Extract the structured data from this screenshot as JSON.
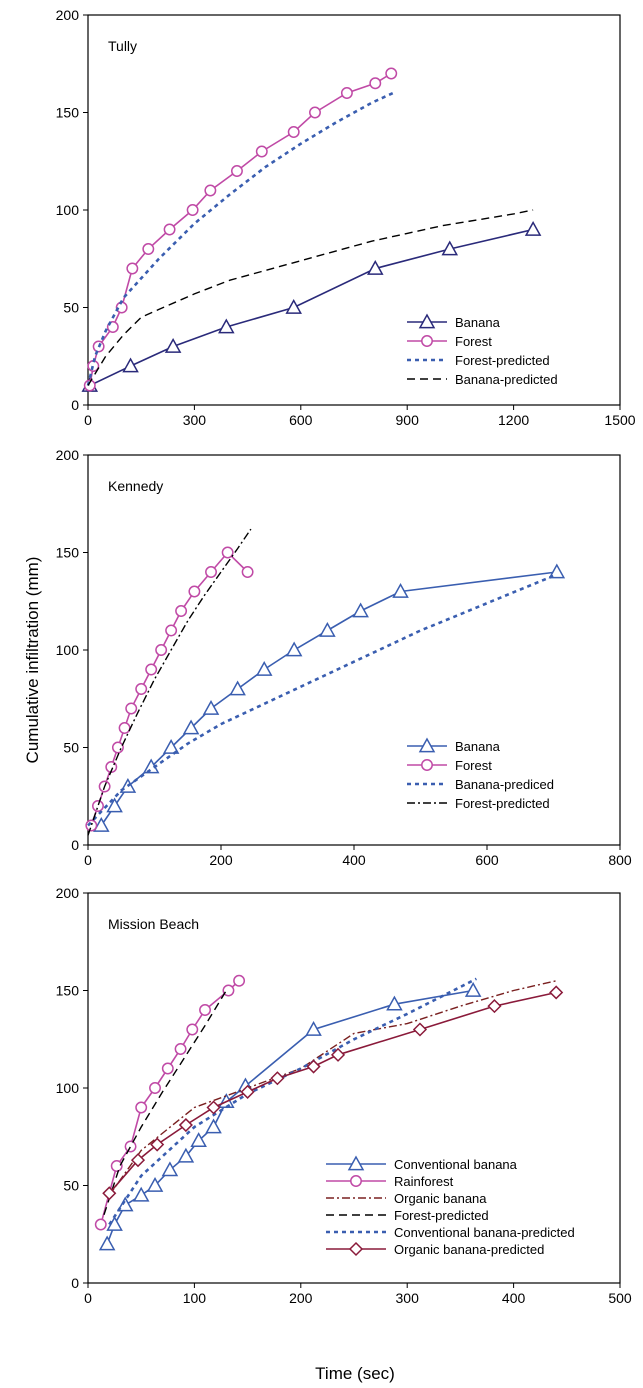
{
  "figure": {
    "ylabel": "Cumulative infiltration (mm)",
    "xlabel": "Time (sec)"
  },
  "chart_data": [
    {
      "type": "line",
      "panel_label": "Tully",
      "xlim": [
        0,
        1500
      ],
      "ylim": [
        0,
        200
      ],
      "xticks": [
        0,
        300,
        600,
        900,
        1200,
        1500
      ],
      "yticks": [
        0,
        50,
        100,
        150,
        200
      ],
      "legend_position": "bottom-right",
      "series": [
        {
          "name": "Banana",
          "color": "#2a2a7a",
          "line": "solid",
          "marker": "triangle",
          "x": [
            5,
            120,
            240,
            390,
            580,
            810,
            1020,
            1255
          ],
          "y": [
            10,
            20,
            30,
            40,
            50,
            70,
            80,
            90
          ]
        },
        {
          "name": "Forest",
          "color": "#c04aa6",
          "line": "solid",
          "marker": "circle",
          "x": [
            5,
            15,
            30,
            70,
            95,
            125,
            170,
            230,
            295,
            345,
            420,
            490,
            580,
            640,
            730,
            810,
            855
          ],
          "y": [
            10,
            20,
            30,
            40,
            50,
            70,
            80,
            90,
            100,
            110,
            120,
            130,
            140,
            150,
            160,
            165,
            170
          ]
        },
        {
          "name": "Forest-predicted",
          "color": "#3a5eb0",
          "line": "dotted",
          "marker": "none",
          "x": [
            0,
            20,
            50,
            100,
            150,
            200,
            300,
            400,
            500,
            600,
            700,
            800,
            860
          ],
          "y": [
            10,
            25,
            38,
            55,
            65,
            75,
            93,
            108,
            122,
            134,
            145,
            155,
            160
          ]
        },
        {
          "name": "Banana-predicted",
          "color": "#000000",
          "line": "dashed",
          "marker": "none",
          "x": [
            0,
            50,
            100,
            150,
            200,
            300,
            400,
            500,
            600,
            700,
            800,
            900,
            1000,
            1100,
            1200,
            1255
          ],
          "y": [
            10,
            25,
            36,
            45,
            49,
            57,
            64,
            69,
            74,
            79,
            84,
            88,
            92,
            95,
            98,
            100
          ]
        }
      ]
    },
    {
      "type": "line",
      "panel_label": "Kennedy",
      "xlim": [
        0,
        800
      ],
      "ylim": [
        0,
        200
      ],
      "xticks": [
        0,
        200,
        400,
        600,
        800
      ],
      "yticks": [
        0,
        50,
        100,
        150,
        200
      ],
      "legend_position": "bottom-right",
      "series": [
        {
          "name": "Banana",
          "color": "#3a5eb0",
          "line": "solid",
          "marker": "triangle",
          "x": [
            20,
            40,
            60,
            95,
            125,
            155,
            185,
            225,
            265,
            310,
            360,
            410,
            470,
            705
          ],
          "y": [
            10,
            20,
            30,
            40,
            50,
            60,
            70,
            80,
            90,
            100,
            110,
            120,
            130,
            140
          ]
        },
        {
          "name": "Forest",
          "color": "#c04aa6",
          "line": "solid",
          "marker": "circle",
          "x": [
            5,
            15,
            25,
            35,
            45,
            55,
            65,
            80,
            95,
            110,
            125,
            140,
            160,
            185,
            210,
            240
          ],
          "y": [
            10,
            20,
            30,
            40,
            50,
            60,
            70,
            80,
            90,
            100,
            110,
            120,
            130,
            140,
            150,
            140
          ]
        },
        {
          "name": "Banana-prediced",
          "color": "#3a5eb0",
          "line": "dotted",
          "marker": "none",
          "x": [
            0,
            50,
            100,
            150,
            200,
            250,
            300,
            350,
            400,
            450,
            500,
            550,
            600,
            650,
            700
          ],
          "y": [
            10,
            28,
            40,
            52,
            62,
            70,
            78,
            86,
            94,
            102,
            110,
            117,
            124,
            131,
            138
          ]
        },
        {
          "name": "Forest-predicted",
          "color": "#000000",
          "line": "dashdot",
          "marker": "none",
          "x": [
            0,
            25,
            50,
            75,
            100,
            125,
            150,
            175,
            200,
            225,
            245
          ],
          "y": [
            5,
            30,
            50,
            68,
            85,
            100,
            115,
            128,
            140,
            152,
            162
          ]
        }
      ]
    },
    {
      "type": "line",
      "panel_label": "Mission Beach",
      "xlim": [
        0,
        500
      ],
      "ylim": [
        0,
        200
      ],
      "xticks": [
        0,
        100,
        200,
        300,
        400,
        500
      ],
      "yticks": [
        0,
        50,
        100,
        150,
        200
      ],
      "legend_position": "bottom-right",
      "series": [
        {
          "name": "Conventional banana",
          "color": "#3a5eb0",
          "line": "solid",
          "marker": "triangle",
          "x": [
            18,
            25,
            35,
            50,
            63,
            77,
            92,
            104,
            118,
            130,
            148,
            212,
            288,
            362
          ],
          "y": [
            20,
            30,
            40,
            45,
            50,
            58,
            65,
            73,
            80,
            93,
            101,
            130,
            143,
            150
          ]
        },
        {
          "name": "Rainforest",
          "color": "#c04aa6",
          "line": "solid",
          "marker": "circle",
          "x": [
            12,
            27,
            40,
            50,
            63,
            75,
            87,
            98,
            110,
            132,
            142
          ],
          "y": [
            30,
            60,
            70,
            90,
            100,
            110,
            120,
            130,
            140,
            150,
            155
          ]
        },
        {
          "name": "Organic banana",
          "color": "#7a2020",
          "line": "dashdot",
          "marker": "none",
          "x": [
            20,
            50,
            100,
            150,
            200,
            250,
            300,
            350,
            400,
            440
          ],
          "y": [
            45,
            68,
            90,
            100,
            110,
            128,
            133,
            142,
            150,
            155
          ]
        },
        {
          "name": "Forest-predicted",
          "color": "#000000",
          "line": "dashed",
          "marker": "none",
          "x": [
            15,
            30,
            50,
            70,
            90,
            110,
            130
          ],
          "y": [
            35,
            60,
            80,
            98,
            115,
            132,
            150
          ]
        },
        {
          "name": "Conventional banana-predicted",
          "color": "#3a5eb0",
          "line": "dotted",
          "marker": "none",
          "x": [
            20,
            50,
            100,
            150,
            200,
            250,
            300,
            365
          ],
          "y": [
            30,
            55,
            80,
            97,
            110,
            125,
            138,
            156
          ]
        },
        {
          "name": "Organic banana-predicted",
          "color": "#8a1a3a",
          "line": "solid",
          "marker": "diamond",
          "x": [
            20,
            47,
            65,
            92,
            118,
            150,
            178,
            212,
            235,
            312,
            382,
            440
          ],
          "y": [
            46,
            63,
            71,
            81,
            90,
            98,
            105,
            111,
            117,
            130,
            142,
            149
          ]
        }
      ]
    }
  ]
}
